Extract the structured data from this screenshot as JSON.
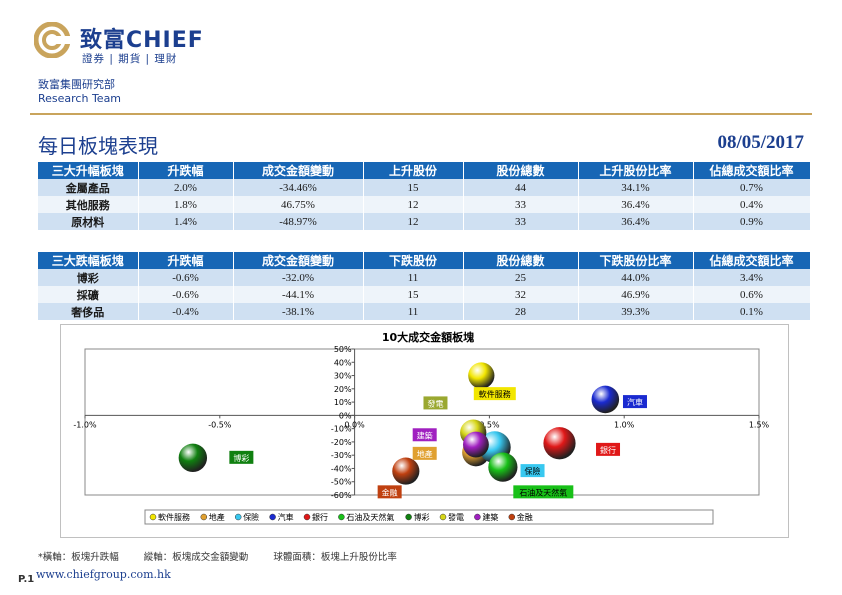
{
  "brand": {
    "logo_name": "致富CHIEF",
    "logo_sub": "證券 | 期貨 | 理財",
    "dept_cn": "致富集團研究部",
    "dept_en": "Research Team"
  },
  "page": {
    "title": "每日板塊表現",
    "date": "08/05/2017",
    "page_number": "P.1",
    "website": "www.chiefgroup.com.hk"
  },
  "gainers": {
    "headers": [
      "三大升幅板塊",
      "升跌幅",
      "成交金額變動",
      "上升股份",
      "股份總數",
      "上升股份比率",
      "佔總成交額比率"
    ],
    "rows": [
      [
        "金屬產品",
        "2.0%",
        "-34.46%",
        "15",
        "44",
        "34.1%",
        "0.7%"
      ],
      [
        "其他服務",
        "1.8%",
        "46.75%",
        "12",
        "33",
        "36.4%",
        "0.4%"
      ],
      [
        "原材料",
        "1.4%",
        "-48.97%",
        "12",
        "33",
        "36.4%",
        "0.9%"
      ]
    ]
  },
  "losers": {
    "headers": [
      "三大跌幅板塊",
      "升跌幅",
      "成交金額變動",
      "下跌股份",
      "股份總數",
      "下跌股份比率",
      "佔總成交額比率"
    ],
    "rows": [
      [
        "博彩",
        "-0.6%",
        "-32.0%",
        "11",
        "25",
        "44.0%",
        "3.4%"
      ],
      [
        "採礦",
        "-0.6%",
        "-44.1%",
        "15",
        "32",
        "46.9%",
        "0.6%"
      ],
      [
        "奢侈品",
        "-0.4%",
        "-38.1%",
        "11",
        "28",
        "39.3%",
        "0.1%"
      ]
    ]
  },
  "footnote": {
    "x_note": "*橫軸：板塊升跌幅",
    "y_note": "縱軸：板塊成交金額變動",
    "size_note": "球體面積：板塊上升股份比率"
  },
  "chart_data": {
    "type": "scatter",
    "title": "10大成交金額板塊",
    "xlabel": "",
    "ylabel": "",
    "xlim": [
      -1.0,
      1.5
    ],
    "ylim": [
      -60,
      50
    ],
    "x_ticks": [
      "-1.0%",
      "-0.5%",
      "0.0%",
      "0.5%",
      "1.0%",
      "1.5%"
    ],
    "y_ticks": [
      "50%",
      "40%",
      "30%",
      "20%",
      "10%",
      "0%",
      "-10%",
      "-20%",
      "-30%",
      "-40%",
      "-50%",
      "-60%"
    ],
    "legend_position": "bottom",
    "series": [
      {
        "name": "軟件服務",
        "x": 0.47,
        "y": 30,
        "size": 0.3,
        "color": "#f2e600"
      },
      {
        "name": "地產",
        "x": 0.45,
        "y": -28,
        "size": 0.33,
        "color": "#e0a030"
      },
      {
        "name": "保險",
        "x": 0.52,
        "y": -24,
        "size": 0.44,
        "color": "#38c8f0"
      },
      {
        "name": "汽車",
        "x": 0.93,
        "y": 12,
        "size": 0.33,
        "color": "#1a2ad0"
      },
      {
        "name": "銀行",
        "x": 0.76,
        "y": -21,
        "size": 0.45,
        "color": "#e01818"
      },
      {
        "name": "石油及天然氣",
        "x": 0.55,
        "y": -39,
        "size": 0.37,
        "color": "#18c018"
      },
      {
        "name": "博彩",
        "x": -0.6,
        "y": -32,
        "size": 0.35,
        "color": "#108010"
      },
      {
        "name": "發電",
        "x": 0.44,
        "y": -13,
        "size": 0.3,
        "color": "#d6d618"
      },
      {
        "name": "建築",
        "x": 0.45,
        "y": -22,
        "size": 0.29,
        "color": "#a020c0"
      },
      {
        "name": "金融",
        "x": 0.19,
        "y": -42,
        "size": 0.32,
        "color": "#c04010"
      }
    ],
    "data_labels": [
      {
        "text": "軟件服務",
        "x": 0.52,
        "y": 16,
        "bg": "#f2e600",
        "fg": "#000"
      },
      {
        "text": "發電",
        "x": 0.3,
        "y": 9,
        "bg": "#9aa830",
        "fg": "#fff"
      },
      {
        "text": "汽車",
        "x": 1.04,
        "y": 10,
        "bg": "#1a2ad0",
        "fg": "#fff"
      },
      {
        "text": "建築",
        "x": 0.26,
        "y": -15,
        "bg": "#a020c0",
        "fg": "#fff"
      },
      {
        "text": "銀行",
        "x": 0.94,
        "y": -26,
        "bg": "#e01818",
        "fg": "#fff"
      },
      {
        "text": "地產",
        "x": 0.26,
        "y": -29,
        "bg": "#e0a030",
        "fg": "#fff"
      },
      {
        "text": "博彩",
        "x": -0.42,
        "y": -32,
        "bg": "#108010",
        "fg": "#fff"
      },
      {
        "text": "保險",
        "x": 0.66,
        "y": -42,
        "bg": "#38c8f0",
        "fg": "#000"
      },
      {
        "text": "金融",
        "x": 0.13,
        "y": -58,
        "bg": "#c04010",
        "fg": "#fff"
      },
      {
        "text": "石油及天然氣",
        "x": 0.7,
        "y": -58,
        "bg": "#18c018",
        "fg": "#000"
      }
    ]
  }
}
